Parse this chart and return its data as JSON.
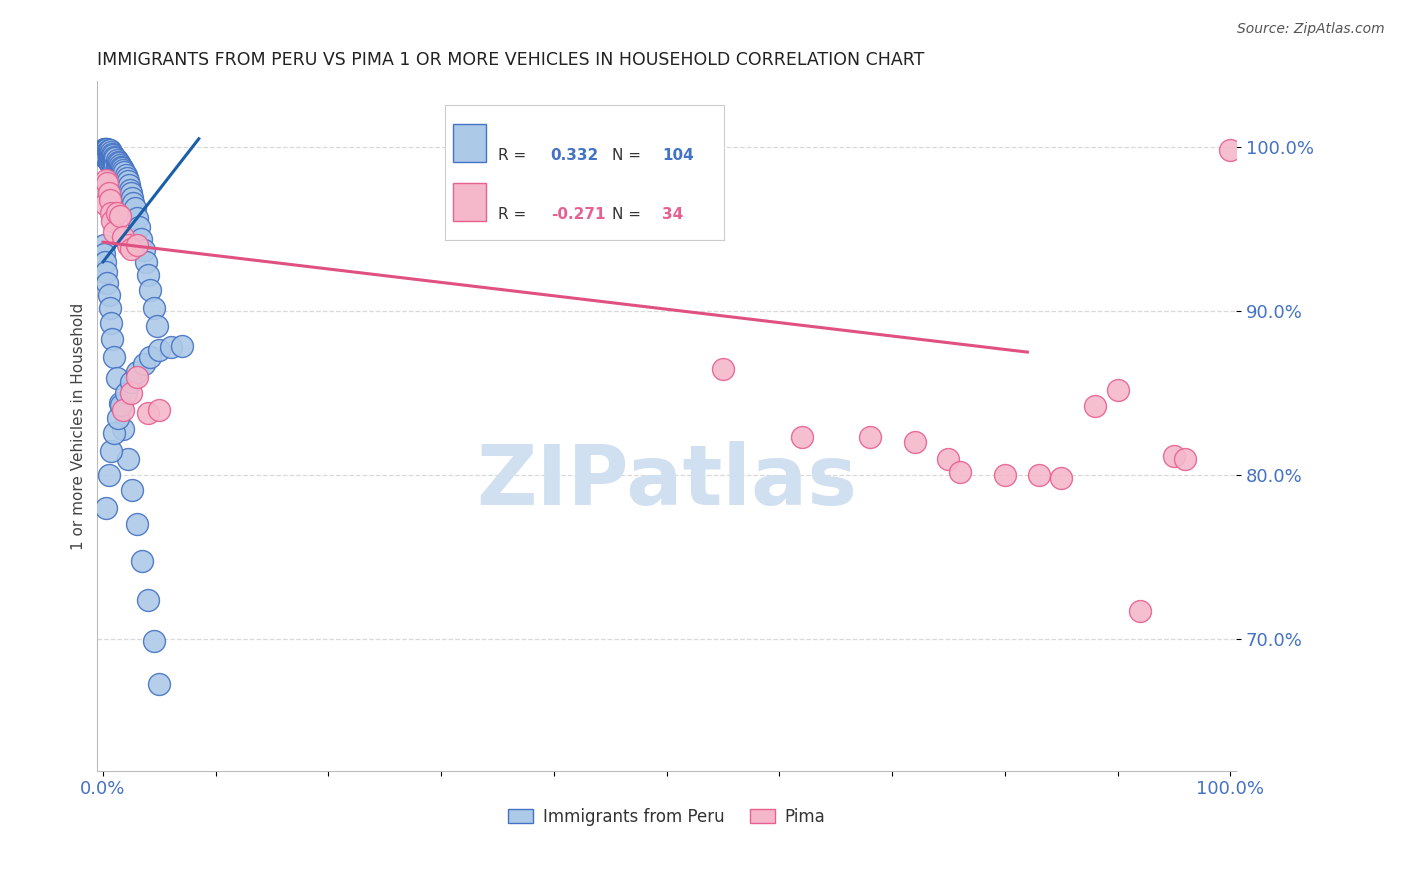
{
  "title": "IMMIGRANTS FROM PERU VS PIMA 1 OR MORE VEHICLES IN HOUSEHOLD CORRELATION CHART",
  "source": "Source: ZipAtlas.com",
  "ylabel": "1 or more Vehicles in Household",
  "legend_label_blue": "Immigrants from Peru",
  "legend_label_pink": "Pima",
  "blue_R": 0.332,
  "blue_N": 104,
  "pink_R": -0.271,
  "pink_N": 34,
  "xlim": [
    -0.005,
    1.005
  ],
  "ylim": [
    0.62,
    1.04
  ],
  "yticks": [
    0.7,
    0.8,
    0.9,
    1.0
  ],
  "ytick_labels": [
    "70.0%",
    "80.0%",
    "90.0%",
    "100.0%"
  ],
  "xtick_positions": [
    0.0,
    0.1,
    0.2,
    0.3,
    0.4,
    0.5,
    0.6,
    0.7,
    0.8,
    0.9,
    1.0
  ],
  "xtick_labels": [
    "0.0%",
    "",
    "",
    "",
    "",
    "",
    "",
    "",
    "",
    "",
    "100.0%"
  ],
  "blue_color": "#adc9e8",
  "blue_edge_color": "#4472c4",
  "pink_color": "#f5b8cb",
  "pink_edge_color": "#e86090",
  "axis_tick_color": "#4472c4",
  "watermark_color": "#d0e0f0",
  "grid_color": "#d0d0d0",
  "blue_trendline_color": "#1a5fa8",
  "pink_trendline_color": "#e05080",
  "blue_x": [
    0.001,
    0.001,
    0.001,
    0.002,
    0.002,
    0.002,
    0.002,
    0.003,
    0.003,
    0.003,
    0.003,
    0.004,
    0.004,
    0.004,
    0.004,
    0.005,
    0.005,
    0.005,
    0.005,
    0.006,
    0.006,
    0.006,
    0.006,
    0.007,
    0.007,
    0.007,
    0.008,
    0.008,
    0.008,
    0.009,
    0.009,
    0.009,
    0.01,
    0.01,
    0.01,
    0.011,
    0.011,
    0.012,
    0.012,
    0.013,
    0.013,
    0.014,
    0.014,
    0.015,
    0.015,
    0.016,
    0.016,
    0.017,
    0.017,
    0.018,
    0.018,
    0.019,
    0.02,
    0.021,
    0.022,
    0.023,
    0.024,
    0.025,
    0.026,
    0.027,
    0.028,
    0.03,
    0.032,
    0.034,
    0.036,
    0.038,
    0.04,
    0.042,
    0.045,
    0.048,
    0.001,
    0.001,
    0.002,
    0.003,
    0.004,
    0.005,
    0.006,
    0.007,
    0.008,
    0.01,
    0.012,
    0.015,
    0.018,
    0.022,
    0.026,
    0.03,
    0.035,
    0.04,
    0.045,
    0.05,
    0.003,
    0.005,
    0.007,
    0.01,
    0.013,
    0.016,
    0.02,
    0.025,
    0.03,
    0.036,
    0.042,
    0.05,
    0.06,
    0.07
  ],
  "blue_y": [
    0.999,
    0.998,
    0.996,
    0.999,
    0.998,
    0.996,
    0.994,
    0.999,
    0.997,
    0.995,
    0.993,
    0.999,
    0.997,
    0.995,
    0.993,
    0.998,
    0.996,
    0.994,
    0.991,
    0.998,
    0.996,
    0.993,
    0.99,
    0.997,
    0.994,
    0.991,
    0.996,
    0.993,
    0.99,
    0.995,
    0.992,
    0.989,
    0.994,
    0.991,
    0.988,
    0.993,
    0.989,
    0.992,
    0.988,
    0.991,
    0.987,
    0.99,
    0.986,
    0.989,
    0.985,
    0.988,
    0.984,
    0.987,
    0.983,
    0.986,
    0.982,
    0.985,
    0.983,
    0.981,
    0.979,
    0.977,
    0.974,
    0.972,
    0.969,
    0.966,
    0.963,
    0.957,
    0.951,
    0.944,
    0.937,
    0.93,
    0.922,
    0.913,
    0.902,
    0.891,
    0.94,
    0.935,
    0.93,
    0.924,
    0.917,
    0.91,
    0.902,
    0.893,
    0.883,
    0.872,
    0.859,
    0.844,
    0.828,
    0.81,
    0.791,
    0.77,
    0.748,
    0.724,
    0.699,
    0.673,
    0.78,
    0.8,
    0.815,
    0.826,
    0.835,
    0.843,
    0.85,
    0.857,
    0.863,
    0.868,
    0.872,
    0.876,
    0.878,
    0.879
  ],
  "pink_x": [
    0.002,
    0.003,
    0.004,
    0.005,
    0.006,
    0.007,
    0.008,
    0.01,
    0.012,
    0.015,
    0.018,
    0.022,
    0.025,
    0.03,
    0.018,
    0.025,
    0.03,
    0.04,
    0.05,
    0.55,
    0.62,
    0.68,
    0.72,
    0.75,
    0.76,
    0.8,
    0.83,
    0.85,
    0.88,
    0.9,
    0.92,
    0.95,
    0.96,
    1.0
  ],
  "pink_y": [
    0.965,
    0.98,
    0.978,
    0.972,
    0.968,
    0.96,
    0.955,
    0.948,
    0.96,
    0.958,
    0.945,
    0.94,
    0.938,
    0.94,
    0.84,
    0.85,
    0.86,
    0.838,
    0.84,
    0.865,
    0.823,
    0.823,
    0.82,
    0.81,
    0.802,
    0.8,
    0.8,
    0.798,
    0.842,
    0.852,
    0.717,
    0.812,
    0.81,
    0.998
  ],
  "blue_trendline_x": [
    0.0,
    0.085
  ],
  "blue_trendline_y": [
    0.93,
    1.005
  ],
  "pink_trendline_x": [
    0.0,
    0.82
  ],
  "pink_trendline_y": [
    0.942,
    0.875
  ]
}
